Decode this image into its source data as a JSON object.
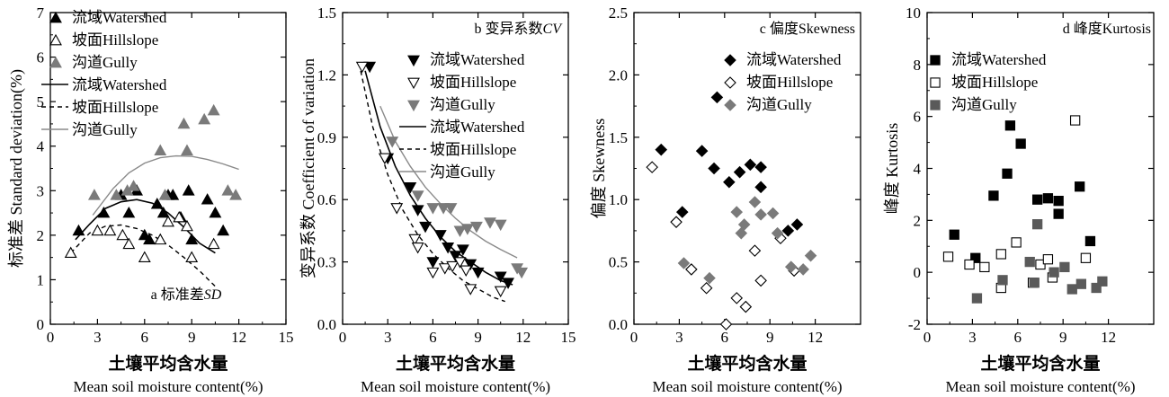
{
  "chart_data": [
    {
      "id": "a",
      "type": "scatter",
      "title": "a 标准差",
      "title_italic": "SD",
      "xlabel": "土壤平均含水量",
      "xlabel_en": "Mean soil moisture content(%)",
      "ylabel": "标准差 Standard deviation(%)",
      "xlim": [
        0,
        15
      ],
      "ylim": [
        0,
        7
      ],
      "xticks": [
        "0",
        "3",
        "6",
        "9",
        "12",
        "15"
      ],
      "yticks": [
        "0",
        "1",
        "2",
        "3",
        "4",
        "5",
        "6",
        "7"
      ],
      "legend_position": "top-left",
      "series": [
        {
          "name": "流域Watershed",
          "kind": "points",
          "marker": "triangle-up-filled",
          "color": "#000000",
          "points": [
            [
              1.8,
              2.1
            ],
            [
              3.4,
              2.5
            ],
            [
              4.5,
              2.9
            ],
            [
              5.0,
              2.5
            ],
            [
              5.5,
              3.0
            ],
            [
              6.0,
              2.0
            ],
            [
              6.3,
              1.9
            ],
            [
              6.8,
              2.7
            ],
            [
              7.2,
              2.5
            ],
            [
              7.5,
              2.9
            ],
            [
              7.8,
              2.9
            ],
            [
              8.3,
              2.4
            ],
            [
              8.8,
              3.0
            ],
            [
              9.0,
              1.9
            ],
            [
              10.0,
              2.8
            ],
            [
              10.5,
              2.5
            ],
            [
              11.0,
              2.1
            ]
          ]
        },
        {
          "name": "坡面Hillslope",
          "kind": "points",
          "marker": "triangle-up-open",
          "color": "#000000",
          "points": [
            [
              1.3,
              1.6
            ],
            [
              3.0,
              2.1
            ],
            [
              3.8,
              2.1
            ],
            [
              4.6,
              2.0
            ],
            [
              5.0,
              1.8
            ],
            [
              6.0,
              1.5
            ],
            [
              7.0,
              1.9
            ],
            [
              7.5,
              2.3
            ],
            [
              8.2,
              2.4
            ],
            [
              8.7,
              2.2
            ],
            [
              9.0,
              1.5
            ],
            [
              10.4,
              1.8
            ]
          ]
        },
        {
          "name": "沟道Gully",
          "kind": "points",
          "marker": "triangle-up-filled",
          "color": "#7a7a7a",
          "points": [
            [
              2.8,
              2.9
            ],
            [
              4.2,
              2.9
            ],
            [
              4.9,
              3.0
            ],
            [
              5.3,
              3.1
            ],
            [
              7.0,
              3.9
            ],
            [
              7.3,
              2.9
            ],
            [
              8.5,
              4.5
            ],
            [
              8.7,
              3.9
            ],
            [
              9.8,
              4.6
            ],
            [
              10.4,
              4.8
            ],
            [
              11.3,
              3.0
            ],
            [
              11.8,
              2.9
            ]
          ]
        },
        {
          "name": "流域Watershed",
          "kind": "curve",
          "style": "solid",
          "color": "#000000",
          "width": 1.6,
          "points": [
            [
              1.6,
              1.9
            ],
            [
              2.5,
              2.25
            ],
            [
              3.5,
              2.6
            ],
            [
              4.5,
              2.75
            ],
            [
              5.5,
              2.8
            ],
            [
              6.5,
              2.72
            ],
            [
              7.5,
              2.5
            ],
            [
              8.5,
              2.18
            ],
            [
              9.5,
              1.82
            ],
            [
              10.5,
              1.6
            ]
          ]
        },
        {
          "name": "坡面Hillslope",
          "kind": "curve",
          "style": "dashed",
          "color": "#000000",
          "width": 1.4,
          "points": [
            [
              1.3,
              1.6
            ],
            [
              2.5,
              2.05
            ],
            [
              3.5,
              2.2
            ],
            [
              4.5,
              2.23
            ],
            [
              5.5,
              2.15
            ],
            [
              6.5,
              2.0
            ],
            [
              7.5,
              1.78
            ],
            [
              8.5,
              1.5
            ],
            [
              9.5,
              1.2
            ],
            [
              10.5,
              0.85
            ]
          ]
        },
        {
          "name": "沟道Gully",
          "kind": "curve",
          "style": "solid",
          "color": "#8a8a8a",
          "width": 1.4,
          "points": [
            [
              2.7,
              2.45
            ],
            [
              4.0,
              3.05
            ],
            [
              5.0,
              3.4
            ],
            [
              6.0,
              3.62
            ],
            [
              7.0,
              3.74
            ],
            [
              8.0,
              3.78
            ],
            [
              9.0,
              3.77
            ],
            [
              10.0,
              3.7
            ],
            [
              11.0,
              3.6
            ],
            [
              12.0,
              3.48
            ]
          ]
        }
      ]
    },
    {
      "id": "b",
      "type": "scatter",
      "title": "b 变异系数",
      "title_italic": "CV",
      "xlabel": "土壤平均含水量",
      "xlabel_en": "Mean soil moisture content(%)",
      "ylabel": "变异系数 Coefficient of variation",
      "xlim": [
        0,
        15
      ],
      "ylim": [
        0,
        1.5
      ],
      "xticks": [
        "0",
        "3",
        "6",
        "9",
        "12",
        "15"
      ],
      "yticks": [
        "0.0",
        "0.3",
        "0.6",
        "0.9",
        "1.2",
        "1.5"
      ],
      "legend_position": "top-right",
      "series": [
        {
          "name": "流域Watershed",
          "kind": "points",
          "marker": "triangle-down-filled",
          "color": "#000000",
          "points": [
            [
              1.8,
              1.24
            ],
            [
              3.0,
              0.8
            ],
            [
              4.5,
              0.66
            ],
            [
              5.0,
              0.55
            ],
            [
              5.5,
              0.47
            ],
            [
              6.0,
              0.3
            ],
            [
              6.5,
              0.43
            ],
            [
              7.0,
              0.37
            ],
            [
              7.5,
              0.33
            ],
            [
              8.0,
              0.36
            ],
            [
              8.5,
              0.29
            ],
            [
              9.0,
              0.25
            ],
            [
              10.5,
              0.23
            ],
            [
              11.0,
              0.2
            ]
          ]
        },
        {
          "name": "坡面Hillslope",
          "kind": "points",
          "marker": "triangle-down-open",
          "color": "#000000",
          "points": [
            [
              1.3,
              1.24
            ],
            [
              2.8,
              0.8
            ],
            [
              3.6,
              0.56
            ],
            [
              4.8,
              0.41
            ],
            [
              5.0,
              0.37
            ],
            [
              6.0,
              0.25
            ],
            [
              6.8,
              0.27
            ],
            [
              7.3,
              0.28
            ],
            [
              7.8,
              0.3
            ],
            [
              8.2,
              0.26
            ],
            [
              8.5,
              0.17
            ],
            [
              10.5,
              0.16
            ]
          ]
        },
        {
          "name": "沟道Gully",
          "kind": "points",
          "marker": "triangle-down-filled",
          "color": "#7a7a7a",
          "points": [
            [
              3.3,
              0.88
            ],
            [
              5.0,
              0.62
            ],
            [
              6.0,
              0.56
            ],
            [
              6.7,
              0.56
            ],
            [
              7.2,
              0.56
            ],
            [
              7.8,
              0.45
            ],
            [
              8.3,
              0.46
            ],
            [
              8.9,
              0.47
            ],
            [
              9.8,
              0.49
            ],
            [
              10.5,
              0.48
            ],
            [
              11.6,
              0.27
            ],
            [
              11.9,
              0.25
            ]
          ]
        },
        {
          "name": "流域Watershed",
          "kind": "curve",
          "style": "solid",
          "color": "#000000",
          "width": 1.6,
          "points": [
            [
              1.5,
              1.22
            ],
            [
              2.5,
              0.95
            ],
            [
              3.5,
              0.76
            ],
            [
              4.5,
              0.62
            ],
            [
              5.5,
              0.51
            ],
            [
              6.5,
              0.42
            ],
            [
              7.5,
              0.35
            ],
            [
              8.5,
              0.3
            ],
            [
              9.5,
              0.25
            ],
            [
              10.5,
              0.21
            ],
            [
              11.3,
              0.19
            ]
          ]
        },
        {
          "name": "坡面Hillslope",
          "kind": "curve",
          "style": "dashed",
          "color": "#000000",
          "width": 1.4,
          "points": [
            [
              1.2,
              1.22
            ],
            [
              2.0,
              0.95
            ],
            [
              3.0,
              0.72
            ],
            [
              4.0,
              0.55
            ],
            [
              5.0,
              0.43
            ],
            [
              6.0,
              0.34
            ],
            [
              7.0,
              0.27
            ],
            [
              8.0,
              0.21
            ],
            [
              9.0,
              0.17
            ],
            [
              10.0,
              0.13
            ],
            [
              10.8,
              0.11
            ]
          ]
        },
        {
          "name": "沟道Gully",
          "kind": "curve",
          "style": "solid",
          "color": "#8a8a8a",
          "width": 1.4,
          "points": [
            [
              2.5,
              1.05
            ],
            [
              3.5,
              0.88
            ],
            [
              4.5,
              0.76
            ],
            [
              5.5,
              0.66
            ],
            [
              6.5,
              0.58
            ],
            [
              7.5,
              0.51
            ],
            [
              8.5,
              0.45
            ],
            [
              9.5,
              0.4
            ],
            [
              10.5,
              0.36
            ],
            [
              11.6,
              0.32
            ]
          ]
        }
      ]
    },
    {
      "id": "c",
      "type": "scatter",
      "title": "c 偏度Skewness",
      "title_italic": "",
      "xlabel": "土壤平均含水量",
      "xlabel_en": "Mean soil moisture content(%)",
      "ylabel": "偏度 Skewness",
      "xlim": [
        0,
        15
      ],
      "ylim": [
        0,
        2.5
      ],
      "xticks": [
        "0",
        "3",
        "6",
        "9",
        "12"
      ],
      "yticks": [
        "0.0",
        "0.5",
        "1.0",
        "1.5",
        "2.0",
        "2.5"
      ],
      "legend_position": "top-right",
      "series": [
        {
          "name": "流域Watershed",
          "kind": "points",
          "marker": "diamond-filled",
          "color": "#000000",
          "points": [
            [
              1.8,
              1.4
            ],
            [
              3.2,
              0.9
            ],
            [
              4.5,
              1.39
            ],
            [
              5.3,
              1.25
            ],
            [
              5.5,
              1.82
            ],
            [
              6.3,
              1.14
            ],
            [
              7.0,
              1.22
            ],
            [
              7.7,
              1.28
            ],
            [
              8.4,
              1.26
            ],
            [
              8.4,
              1.1
            ],
            [
              10.2,
              0.75
            ],
            [
              10.8,
              0.8
            ]
          ]
        },
        {
          "name": "坡面Hillslope",
          "kind": "points",
          "marker": "diamond-open",
          "color": "#000000",
          "points": [
            [
              1.2,
              1.26
            ],
            [
              2.8,
              0.82
            ],
            [
              3.8,
              0.44
            ],
            [
              4.8,
              0.29
            ],
            [
              6.1,
              0.0
            ],
            [
              6.8,
              0.21
            ],
            [
              7.4,
              0.14
            ],
            [
              8.0,
              0.59
            ],
            [
              8.4,
              0.35
            ],
            [
              9.7,
              0.69
            ],
            [
              10.6,
              0.43
            ]
          ]
        },
        {
          "name": "沟道Gully",
          "kind": "points",
          "marker": "diamond-filled",
          "color": "#7a7a7a",
          "points": [
            [
              3.3,
              0.49
            ],
            [
              5.0,
              0.37
            ],
            [
              6.8,
              0.9
            ],
            [
              7.1,
              0.73
            ],
            [
              7.3,
              0.8
            ],
            [
              8.0,
              0.98
            ],
            [
              8.4,
              0.88
            ],
            [
              9.2,
              0.89
            ],
            [
              9.5,
              0.73
            ],
            [
              10.4,
              0.46
            ],
            [
              11.2,
              0.44
            ],
            [
              11.7,
              0.55
            ]
          ]
        }
      ]
    },
    {
      "id": "d",
      "type": "scatter",
      "title": "d 峰度Kurtosis",
      "title_italic": "",
      "xlabel": "土壤平均含水量",
      "xlabel_en": "Mean soil moisture content(%)",
      "ylabel": "峰度 Kurtosis",
      "xlim": [
        0,
        15
      ],
      "ylim": [
        -2,
        10
      ],
      "xticks": [
        "0",
        "3",
        "6",
        "9",
        "12"
      ],
      "yticks": [
        "-2",
        "0",
        "2",
        "4",
        "6",
        "8",
        "10"
      ],
      "legend_position": "top-left",
      "series": [
        {
          "name": "流域Watershed",
          "kind": "points",
          "marker": "square-filled",
          "color": "#000000",
          "points": [
            [
              1.8,
              1.45
            ],
            [
              3.2,
              0.55
            ],
            [
              4.4,
              2.95
            ],
            [
              5.3,
              3.8
            ],
            [
              5.5,
              5.65
            ],
            [
              6.2,
              4.95
            ],
            [
              7.3,
              2.8
            ],
            [
              8.0,
              2.85
            ],
            [
              8.7,
              2.75
            ],
            [
              8.7,
              2.25
            ],
            [
              10.1,
              3.3
            ],
            [
              10.8,
              1.2
            ]
          ]
        },
        {
          "name": "坡面Hillslope",
          "kind": "points",
          "marker": "square-open",
          "color": "#000000",
          "points": [
            [
              1.4,
              0.6
            ],
            [
              2.8,
              0.3
            ],
            [
              3.8,
              0.2
            ],
            [
              4.9,
              -0.6
            ],
            [
              4.9,
              0.7
            ],
            [
              5.9,
              1.15
            ],
            [
              7.0,
              -0.4
            ],
            [
              7.5,
              0.3
            ],
            [
              8.0,
              0.5
            ],
            [
              8.3,
              -0.2
            ],
            [
              9.8,
              5.85
            ],
            [
              10.5,
              0.55
            ]
          ]
        },
        {
          "name": "沟道Gully",
          "kind": "points",
          "marker": "square-filled",
          "color": "#5a5a5a",
          "points": [
            [
              3.3,
              -1.0
            ],
            [
              5.0,
              -0.3
            ],
            [
              6.8,
              0.4
            ],
            [
              7.1,
              -0.4
            ],
            [
              7.3,
              1.85
            ],
            [
              8.4,
              0.0
            ],
            [
              9.1,
              0.2
            ],
            [
              9.6,
              -0.65
            ],
            [
              10.2,
              -0.45
            ],
            [
              11.2,
              -0.6
            ],
            [
              11.6,
              -0.35
            ]
          ]
        }
      ]
    }
  ]
}
